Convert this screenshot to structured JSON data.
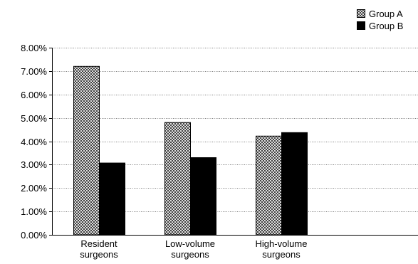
{
  "chart_data": {
    "type": "bar",
    "title": "",
    "xlabel": "",
    "ylabel": "",
    "categories": [
      [
        "Resident",
        "surgeons"
      ],
      [
        "Low-volume",
        "surgeons"
      ],
      [
        "High-volume",
        "surgeons"
      ]
    ],
    "series": [
      {
        "name": "Group A",
        "values": [
          7.2,
          4.8,
          4.22
        ],
        "pattern": "crosshatch",
        "color": "#ffffff"
      },
      {
        "name": "Group B",
        "values": [
          3.07,
          3.3,
          4.37
        ],
        "pattern": "solid",
        "color": "#000000"
      }
    ],
    "ylim": [
      0,
      8
    ],
    "yticks": [
      0,
      1,
      2,
      3,
      4,
      5,
      6,
      7,
      8
    ],
    "ytick_labels": [
      "0.00%",
      "1.00%",
      "2.00%",
      "3.00%",
      "4.00%",
      "5.00%",
      "6.00%",
      "7.00%",
      "8.00%"
    ],
    "grid": "horizontal dotted",
    "legend_position": "top-right"
  }
}
